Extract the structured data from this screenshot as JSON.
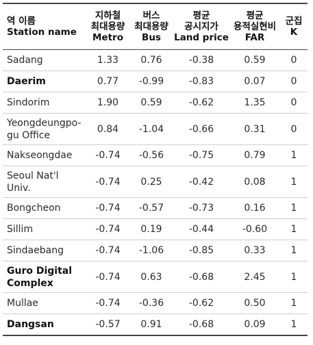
{
  "table": {
    "headers": {
      "station": [
        "역 이름",
        "Station name"
      ],
      "metro": [
        "지하철",
        "최대용량",
        "Metro"
      ],
      "bus": [
        "버스",
        "최대용량",
        "Bus"
      ],
      "land": [
        "평균",
        "공시지가",
        "Land price"
      ],
      "far": [
        "평균",
        "용적실현비",
        "FAR"
      ],
      "k": [
        "군집",
        "K"
      ]
    },
    "rows": [
      {
        "station": "Sadang",
        "metro": "1.33",
        "bus": "0.76",
        "land": "-0.38",
        "far": "0.59",
        "k": "0"
      },
      {
        "station": "Daerim",
        "metro": "0.77",
        "bus": "-0.99",
        "land": "-0.83",
        "far": "0.07",
        "k": "0"
      },
      {
        "station": "Sindorim",
        "metro": "1.90",
        "bus": "0.59",
        "land": "-0.62",
        "far": "1.35",
        "k": "0"
      },
      {
        "station": "Yeongdeungpo-gu Office",
        "metro": "0.84",
        "bus": "-1.04",
        "land": "-0.66",
        "far": "0.31",
        "k": "0"
      },
      {
        "station": "Nakseongdae",
        "metro": "-0.74",
        "bus": "-0.56",
        "land": "-0.75",
        "far": "0.79",
        "k": "1"
      },
      {
        "station": "Seoul Nat'l Univ.",
        "metro": "-0.74",
        "bus": "0.25",
        "land": "-0.42",
        "far": "0.08",
        "k": "1"
      },
      {
        "station": "Bongcheon",
        "metro": "-0.74",
        "bus": "-0.57",
        "land": "-0.73",
        "far": "0.16",
        "k": "1"
      },
      {
        "station": "Sillim",
        "metro": "-0.74",
        "bus": "0.19",
        "land": "-0.44",
        "far": "-0.60",
        "k": "1"
      },
      {
        "station": "Sindaebang",
        "metro": "-0.74",
        "bus": "-1.06",
        "land": "-0.85",
        "far": "0.33",
        "k": "1"
      },
      {
        "station": "Guro Digital Complex",
        "metro": "-0.74",
        "bus": "0.63",
        "land": "-0.68",
        "far": "2.45",
        "k": "1"
      },
      {
        "station": "Mullae",
        "metro": "-0.74",
        "bus": "-0.36",
        "land": "-0.62",
        "far": "0.50",
        "k": "1"
      },
      {
        "station": "Dangsan",
        "metro": "-0.57",
        "bus": "0.91",
        "land": "-0.68",
        "far": "0.09",
        "k": "1"
      }
    ]
  }
}
